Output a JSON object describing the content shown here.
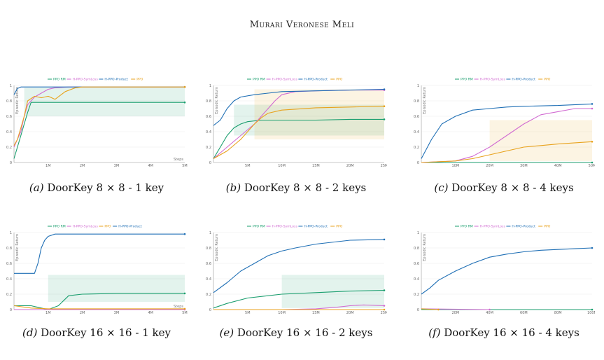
{
  "header": "Murari Veronese Meli",
  "colors": {
    "PPO RM": "#1a9e6e",
    "H-PPO-SymLoss": "#d16bd1",
    "H-PPO-Product": "#1f6fb5",
    "PPO": "#e8a21c"
  },
  "chart_data": [
    {
      "type": "line",
      "id": "a",
      "xlim": [
        0,
        5
      ],
      "ylim": [
        0,
        1
      ],
      "xticks": [
        "1M",
        "2M",
        "3M",
        "4M",
        "5M"
      ],
      "yticks": [
        "0",
        "0.2",
        "0.4",
        "0.6",
        "0.8",
        "1"
      ],
      "xlabel": "Steps",
      "ylabel": "Episodic Return",
      "legend": [
        "PPO RM",
        "H-PPO-SymLoss",
        "H-PPO-Product",
        "PPO"
      ],
      "caption_label": "(a)",
      "caption_text": "DoorKey 8 × 8 - 1 key",
      "series": [
        {
          "name": "PPO RM",
          "x": [
            0,
            0.1,
            0.2,
            0.3,
            0.4,
            0.5,
            0.6,
            1,
            2,
            3,
            4,
            5
          ],
          "y": [
            0.05,
            0.2,
            0.35,
            0.5,
            0.65,
            0.78,
            0.78,
            0.78,
            0.78,
            0.78,
            0.78,
            0.78
          ],
          "band": [
            0.6,
            0.97
          ]
        },
        {
          "name": "H-PPO-SymLoss",
          "x": [
            0,
            0.1,
            0.2,
            0.3,
            0.4,
            0.6,
            0.8,
            1,
            1.2,
            1.6,
            2,
            3,
            4,
            5
          ],
          "y": [
            0.2,
            0.3,
            0.4,
            0.6,
            0.75,
            0.85,
            0.9,
            0.95,
            0.97,
            0.98,
            0.98,
            0.98,
            0.98,
            0.98
          ]
        },
        {
          "name": "H-PPO-Product",
          "x": [
            0,
            0.05,
            0.1,
            0.2,
            0.3,
            0.5,
            1,
            2,
            3,
            4,
            5
          ],
          "y": [
            0.88,
            0.92,
            0.96,
            0.98,
            0.98,
            0.98,
            0.98,
            0.98,
            0.98,
            0.98,
            0.98
          ]
        },
        {
          "name": "PPO",
          "x": [
            0,
            0.1,
            0.2,
            0.3,
            0.4,
            0.6,
            0.8,
            1,
            1.2,
            1.5,
            1.8,
            2,
            3,
            4,
            5
          ],
          "y": [
            0.22,
            0.3,
            0.45,
            0.6,
            0.8,
            0.86,
            0.84,
            0.86,
            0.82,
            0.92,
            0.97,
            0.98,
            0.98,
            0.98,
            0.98
          ]
        }
      ]
    },
    {
      "type": "line",
      "id": "b",
      "xlim": [
        0,
        25
      ],
      "ylim": [
        0,
        1
      ],
      "xticks": [
        "5M",
        "10M",
        "15M",
        "20M",
        "25M"
      ],
      "yticks": [
        "0",
        "0.2",
        "0.4",
        "0.6",
        "0.8",
        "1"
      ],
      "xlabel": "",
      "ylabel": "Episodic Return",
      "legend": [
        "PPO RM",
        "H-PPO-SymLoss",
        "H-PPO-Product",
        "PPO"
      ],
      "caption_label": "(b)",
      "caption_text": "DoorKey 8 × 8 - 2 keys",
      "series": [
        {
          "name": "PPO RM",
          "x": [
            0,
            1,
            2,
            3,
            4,
            5,
            7,
            10,
            15,
            20,
            25
          ],
          "y": [
            0.05,
            0.2,
            0.35,
            0.45,
            0.5,
            0.53,
            0.55,
            0.55,
            0.55,
            0.56,
            0.56
          ],
          "band": [
            0.35,
            0.75
          ]
        },
        {
          "name": "H-PPO-SymLoss",
          "x": [
            0,
            2,
            4,
            6,
            7,
            8,
            9,
            10,
            12,
            15,
            20,
            25
          ],
          "y": [
            0.05,
            0.2,
            0.35,
            0.5,
            0.6,
            0.7,
            0.8,
            0.88,
            0.92,
            0.93,
            0.94,
            0.94
          ]
        },
        {
          "name": "H-PPO-Product",
          "x": [
            0,
            1,
            2,
            3,
            4,
            6,
            8,
            10,
            15,
            20,
            25
          ],
          "y": [
            0.48,
            0.55,
            0.7,
            0.8,
            0.85,
            0.88,
            0.9,
            0.92,
            0.93,
            0.94,
            0.95
          ]
        },
        {
          "name": "PPO",
          "x": [
            0,
            2,
            4,
            6,
            7,
            8,
            10,
            15,
            20,
            25
          ],
          "y": [
            0.05,
            0.15,
            0.3,
            0.5,
            0.58,
            0.64,
            0.68,
            0.71,
            0.72,
            0.73
          ],
          "band": [
            0.3,
            0.95
          ]
        }
      ]
    },
    {
      "type": "line",
      "id": "c",
      "xlim": [
        0,
        50
      ],
      "ylim": [
        0,
        1
      ],
      "xticks": [
        "10M",
        "20M",
        "30M",
        "40M",
        "50M"
      ],
      "yticks": [
        "0",
        "0.2",
        "0.4",
        "0.6",
        "0.8",
        "1"
      ],
      "xlabel": "",
      "ylabel": "Episodic Return",
      "legend": [
        "PPO RM",
        "H-PPO-SymLoss",
        "H-PPO-Product",
        "PPO"
      ],
      "caption_label": "(c)",
      "caption_text": "DoorKey 8 × 8 - 4 keys",
      "series": [
        {
          "name": "PPO RM",
          "x": [
            0,
            50
          ],
          "y": [
            0,
            0
          ]
        },
        {
          "name": "H-PPO-SymLoss",
          "x": [
            0,
            10,
            15,
            20,
            25,
            30,
            35,
            40,
            45,
            50
          ],
          "y": [
            0,
            0.02,
            0.08,
            0.2,
            0.35,
            0.5,
            0.62,
            0.66,
            0.7,
            0.7
          ]
        },
        {
          "name": "H-PPO-Product",
          "x": [
            0,
            3,
            6,
            10,
            15,
            20,
            25,
            30,
            40,
            50
          ],
          "y": [
            0.05,
            0.3,
            0.5,
            0.6,
            0.68,
            0.7,
            0.72,
            0.73,
            0.74,
            0.76
          ]
        },
        {
          "name": "PPO",
          "x": [
            0,
            10,
            15,
            20,
            25,
            30,
            35,
            40,
            50
          ],
          "y": [
            0,
            0.02,
            0.05,
            0.1,
            0.15,
            0.2,
            0.22,
            0.24,
            0.27
          ],
          "band": [
            0.02,
            0.55
          ]
        }
      ]
    },
    {
      "type": "line",
      "id": "d",
      "xlim": [
        0,
        5
      ],
      "ylim": [
        0,
        1
      ],
      "xticks": [
        "1M",
        "2M",
        "3M",
        "4M",
        "5M"
      ],
      "yticks": [
        "0",
        "0.2",
        "0.4",
        "0.6",
        "0.8",
        "1"
      ],
      "xlabel": "Steps",
      "ylabel": "Episodic Return",
      "legend": [
        "PPO RM",
        "H-PPO-SymLoss",
        "PPO",
        "H-PPO-Product"
      ],
      "caption_label": "(d)",
      "caption_text": "DoorKey 16 × 16 - 1 key",
      "series": [
        {
          "name": "PPO RM",
          "x": [
            0,
            0.5,
            0.8,
            1,
            1.3,
            1.6,
            2,
            3,
            4,
            5
          ],
          "y": [
            0.05,
            0.05,
            0.02,
            0,
            0.05,
            0.18,
            0.2,
            0.21,
            0.21,
            0.21
          ],
          "band": [
            0.1,
            0.45
          ]
        },
        {
          "name": "H-PPO-SymLoss",
          "x": [
            0,
            5
          ],
          "y": [
            0,
            0
          ]
        },
        {
          "name": "PPO",
          "x": [
            0,
            0.5,
            1,
            2,
            3,
            4,
            5
          ],
          "y": [
            0.05,
            0.02,
            0.01,
            0.01,
            0.01,
            0.01,
            0.01
          ]
        },
        {
          "name": "H-PPO-Product",
          "x": [
            0,
            0.3,
            0.6,
            0.7,
            0.8,
            0.9,
            1,
            1.2,
            1.5,
            2,
            3,
            4,
            5
          ],
          "y": [
            0.47,
            0.47,
            0.47,
            0.6,
            0.8,
            0.9,
            0.95,
            0.98,
            0.98,
            0.98,
            0.98,
            0.98,
            0.98
          ]
        }
      ]
    },
    {
      "type": "line",
      "id": "e",
      "xlim": [
        0,
        25
      ],
      "ylim": [
        0,
        1
      ],
      "xticks": [
        "5M",
        "10M",
        "15M",
        "20M",
        "25M"
      ],
      "yticks": [
        "0",
        "0.2",
        "0.4",
        "0.6",
        "0.8",
        "1"
      ],
      "xlabel": "",
      "ylabel": "Episodic Return",
      "legend": [
        "PPO RM",
        "H-PPO-SymLoss",
        "H-PPO-Product",
        "PPO"
      ],
      "caption_label": "(e)",
      "caption_text": "DoorKey 16 × 16 - 2 keys",
      "series": [
        {
          "name": "PPO RM",
          "x": [
            0,
            2,
            5,
            10,
            15,
            20,
            25
          ],
          "y": [
            0.02,
            0.08,
            0.15,
            0.2,
            0.22,
            0.24,
            0.25
          ],
          "band": [
            0.02,
            0.45
          ]
        },
        {
          "name": "H-PPO-SymLoss",
          "x": [
            0,
            10,
            15,
            18,
            20,
            22,
            25
          ],
          "y": [
            0,
            0,
            0.01,
            0.03,
            0.05,
            0.06,
            0.05
          ]
        },
        {
          "name": "H-PPO-Product",
          "x": [
            0,
            2,
            4,
            6,
            8,
            10,
            12,
            15,
            20,
            25
          ],
          "y": [
            0.22,
            0.35,
            0.5,
            0.6,
            0.7,
            0.76,
            0.8,
            0.85,
            0.9,
            0.91
          ]
        },
        {
          "name": "PPO",
          "x": [
            0,
            25
          ],
          "y": [
            0,
            0
          ]
        }
      ]
    },
    {
      "type": "line",
      "id": "f",
      "xlim": [
        0,
        100
      ],
      "ylim": [
        0,
        1
      ],
      "xticks": [
        "20M",
        "40M",
        "60M",
        "80M",
        "100M"
      ],
      "yticks": [
        "0",
        "0.2",
        "0.4",
        "0.6",
        "0.8",
        "1"
      ],
      "xlabel": "",
      "ylabel": "Episodic Return",
      "legend": [
        "PPO RM",
        "H-PPO-SymLoss",
        "H-PPO-Product",
        "PPO"
      ],
      "caption_label": "(f)",
      "caption_text": "DoorKey 16 × 16 - 4 keys",
      "series": [
        {
          "name": "PPO RM",
          "x": [
            0,
            100
          ],
          "y": [
            0,
            0
          ]
        },
        {
          "name": "H-PPO-SymLoss",
          "x": [
            0,
            40
          ],
          "y": [
            0.01,
            0
          ]
        },
        {
          "name": "H-PPO-Product",
          "x": [
            0,
            5,
            10,
            20,
            30,
            40,
            50,
            60,
            70,
            80,
            90,
            100
          ],
          "y": [
            0.2,
            0.28,
            0.38,
            0.5,
            0.6,
            0.68,
            0.72,
            0.75,
            0.77,
            0.78,
            0.79,
            0.8
          ]
        },
        {
          "name": "PPO",
          "x": [
            0,
            10
          ],
          "y": [
            0.01,
            0
          ]
        }
      ]
    }
  ]
}
